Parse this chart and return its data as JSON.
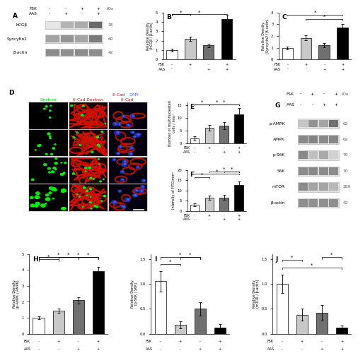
{
  "fig_width": 4.74,
  "fig_height": 4.74,
  "bg_color": "#ffffff",
  "panel_B": {
    "title": "B",
    "ylabel": "Relative Density\n(hCGβ / β-actin)",
    "ylim": [
      0,
      5
    ],
    "yticks": [
      0,
      1,
      2,
      3,
      4,
      5
    ],
    "bars": [
      1.0,
      2.2,
      1.5,
      4.3
    ],
    "bar_colors": [
      "white",
      "#c8c8c8",
      "#707070",
      "black"
    ],
    "bar_errors": [
      0.12,
      0.25,
      0.18,
      0.35
    ],
    "fsk": [
      "-",
      "+",
      "-",
      "+"
    ],
    "aas": [
      "-",
      "-",
      "+",
      "+"
    ],
    "significance": [
      [
        "0",
        "3",
        "*"
      ],
      [
        "0",
        "1",
        "*"
      ]
    ]
  },
  "panel_C": {
    "title": "C",
    "ylabel": "Relative Density\n(Syncytin2 / β-actin)",
    "ylim": [
      0,
      4
    ],
    "yticks": [
      0,
      1,
      2,
      3,
      4
    ],
    "bars": [
      1.0,
      1.85,
      1.2,
      2.7
    ],
    "bar_colors": [
      "white",
      "#c8c8c8",
      "#707070",
      "black"
    ],
    "bar_errors": [
      0.12,
      0.22,
      0.18,
      0.35
    ],
    "fsk": [
      "-",
      "+",
      "-",
      "+"
    ],
    "aas": [
      "-",
      "-",
      "+",
      "+"
    ],
    "significance": [
      [
        "1",
        "3",
        "*"
      ],
      [
        "0",
        "3",
        "*"
      ]
    ]
  },
  "panel_E": {
    "title": "E",
    "ylabel": "Number of multinucleated\ncells / mm²",
    "ylim": [
      0,
      16
    ],
    "yticks": [
      0,
      5,
      10,
      15
    ],
    "bars": [
      2.0,
      6.0,
      7.0,
      11.5
    ],
    "bar_colors": [
      "white",
      "#c8c8c8",
      "#707070",
      "black"
    ],
    "bar_errors": [
      0.8,
      1.1,
      1.4,
      2.5
    ],
    "fsk": [
      "-",
      "+",
      "-",
      "+"
    ],
    "aas": [
      "-",
      "-",
      "+",
      "+"
    ],
    "significance": [
      [
        "0",
        "1",
        "*"
      ],
      [
        "0",
        "3",
        "*"
      ],
      [
        "1",
        "3",
        "*"
      ]
    ]
  },
  "panel_F": {
    "title": "F",
    "ylabel": "Intensity of FITC/mm²",
    "ylim": [
      0,
      20
    ],
    "yticks": [
      0,
      5,
      10,
      15,
      20
    ],
    "bars": [
      3.0,
      6.5,
      6.5,
      12.5
    ],
    "bar_colors": [
      "white",
      "#c8c8c8",
      "#707070",
      "black"
    ],
    "bar_errors": [
      0.6,
      1.0,
      1.2,
      2.0
    ],
    "fsk": [
      "-",
      "+",
      "-",
      "+"
    ],
    "aas": [
      "-",
      "-",
      "+",
      "+"
    ],
    "significance": [
      [
        "0",
        "1",
        "*"
      ],
      [
        "0",
        "3",
        "*"
      ],
      [
        "1",
        "3",
        "*"
      ],
      [
        "2",
        "3",
        "*"
      ]
    ]
  },
  "panel_H": {
    "title": "H",
    "ylabel": "Relative Density\n(p-AMPK / AMPK)",
    "ylim": [
      0,
      5
    ],
    "yticks": [
      0,
      1,
      2,
      3,
      4,
      5
    ],
    "bars": [
      1.0,
      1.45,
      2.1,
      3.9
    ],
    "bar_colors": [
      "white",
      "#c8c8c8",
      "#707070",
      "black"
    ],
    "bar_errors": [
      0.1,
      0.15,
      0.2,
      0.3
    ],
    "fsk": [
      "-",
      "+",
      "-",
      "+"
    ],
    "aas": [
      "-",
      "-",
      "+",
      "+"
    ],
    "significance": [
      [
        "0",
        "1",
        "*"
      ],
      [
        "0",
        "2",
        "*"
      ],
      [
        "0",
        "3",
        "*"
      ],
      [
        "1",
        "3",
        "*"
      ],
      [
        "2",
        "3",
        "*"
      ]
    ]
  },
  "panel_I": {
    "title": "I",
    "ylabel": "Relative Density\n(p-S6K / S6K)",
    "ylim": [
      0,
      1.6
    ],
    "yticks": [
      0.0,
      0.5,
      1.0,
      1.5
    ],
    "bars": [
      1.05,
      0.18,
      0.5,
      0.12
    ],
    "bar_colors": [
      "white",
      "#c8c8c8",
      "#707070",
      "black"
    ],
    "bar_errors": [
      0.2,
      0.07,
      0.13,
      0.07
    ],
    "fsk": [
      "-",
      "+",
      "-",
      "+"
    ],
    "aas": [
      "-",
      "-",
      "+",
      "+"
    ],
    "significance": [
      [
        "0",
        "1",
        "*"
      ],
      [
        "1",
        "2",
        "*"
      ],
      [
        "0",
        "2",
        "*"
      ]
    ]
  },
  "panel_J": {
    "title": "J",
    "ylabel": "Relative Density\n(mTOR / β-actin)",
    "ylim": [
      0,
      1.6
    ],
    "yticks": [
      0.0,
      0.5,
      1.0,
      1.5
    ],
    "bars": [
      1.0,
      0.38,
      0.42,
      0.12
    ],
    "bar_colors": [
      "white",
      "#c8c8c8",
      "#707070",
      "black"
    ],
    "bar_errors": [
      0.18,
      0.12,
      0.15,
      0.05
    ],
    "fsk": [
      "-",
      "+",
      "-",
      "+"
    ],
    "aas": [
      "-",
      "-",
      "+",
      "+"
    ],
    "significance": [
      [
        "0",
        "3",
        "*"
      ],
      [
        "0",
        "1",
        "*"
      ],
      [
        "2",
        "3",
        "*"
      ]
    ]
  },
  "western_A": {
    "rows": [
      "hCGβ",
      "Syncytin2",
      "β-actin"
    ],
    "kda": [
      "18",
      "60",
      "42"
    ],
    "fsk_row": [
      "-",
      "-",
      "+",
      "+"
    ],
    "aas_row": [
      "-",
      "+",
      "-",
      "+"
    ],
    "intensities": {
      "hCGβ": [
        0.15,
        0.45,
        0.5,
        0.9
      ],
      "Syncytin2": [
        0.55,
        0.65,
        0.55,
        0.8
      ],
      "β-actin": [
        0.7,
        0.68,
        0.7,
        0.69
      ]
    }
  },
  "western_G": {
    "rows": [
      "p-AMPK",
      "AMPK",
      "p-S6K",
      "S6K",
      "mTOR",
      "β-actin"
    ],
    "kda": [
      "62",
      "62",
      "70",
      "70",
      "289",
      "42"
    ],
    "fsk_row": [
      "-",
      "+",
      "-",
      "+"
    ],
    "aas_row": [
      "-",
      "-",
      "+",
      "+"
    ],
    "intensities": {
      "p-AMPK": [
        0.35,
        0.65,
        0.55,
        0.85
      ],
      "AMPK": [
        0.72,
        0.74,
        0.71,
        0.73
      ],
      "p-S6K": [
        0.72,
        0.38,
        0.52,
        0.28
      ],
      "S6K": [
        0.7,
        0.71,
        0.7,
        0.7
      ],
      "mTOR": [
        0.7,
        0.55,
        0.55,
        0.42
      ],
      "β-actin": [
        0.68,
        0.67,
        0.68,
        0.67
      ]
    }
  }
}
